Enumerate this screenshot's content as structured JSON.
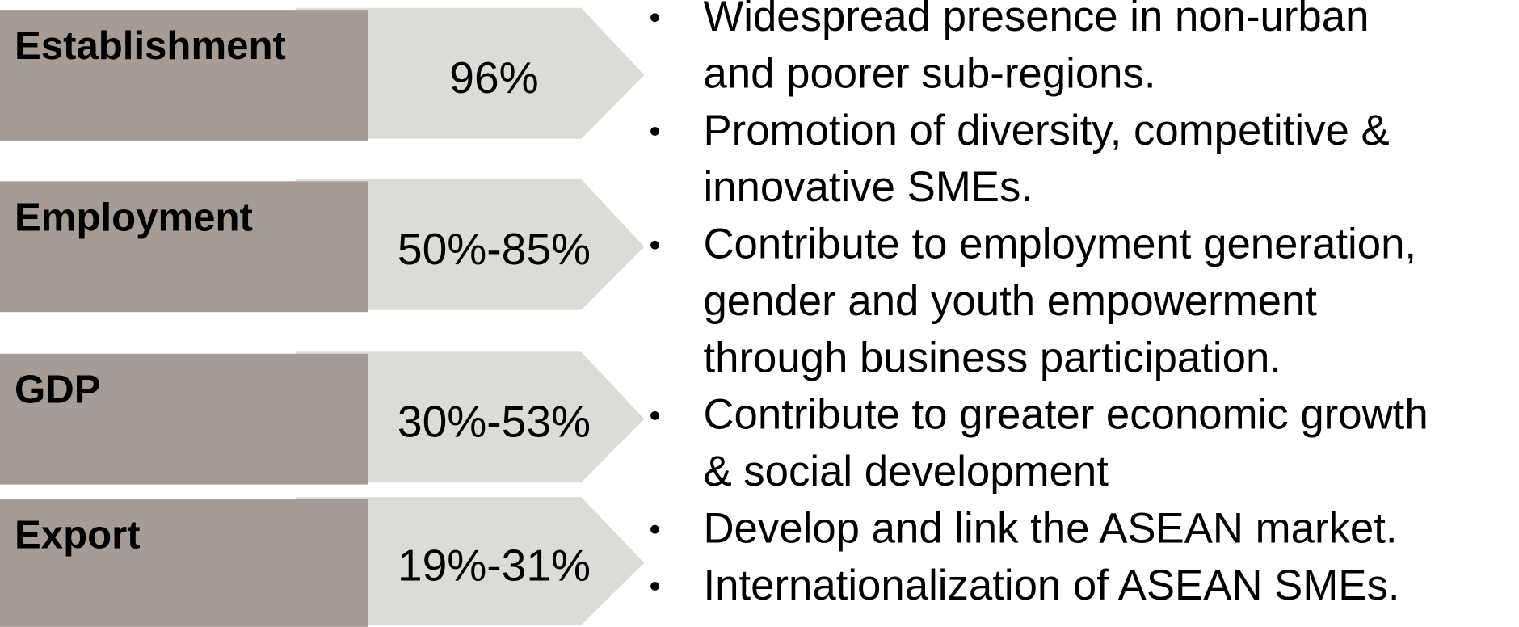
{
  "rows": [
    {
      "label": "Establishment",
      "value": "96%"
    },
    {
      "label": "Employment",
      "value": "50%-85%"
    },
    {
      "label": "GDP",
      "value": "30%-53%"
    },
    {
      "label": "Export",
      "value": "19%-31%"
    }
  ],
  "bullets": [
    [
      "Widespread presence in non-urban",
      "and poorer sub-regions."
    ],
    [
      "Promotion of diversity, competitive &",
      "innovative SMEs."
    ],
    [
      "Contribute to employment generation,",
      "gender and youth empowerment",
      "through business participation."
    ],
    [
      "Contribute to greater economic growth",
      "& social development"
    ],
    [
      "Develop and link the ASEAN market."
    ],
    [
      "Internationalization of ASEAN SMEs."
    ]
  ]
}
